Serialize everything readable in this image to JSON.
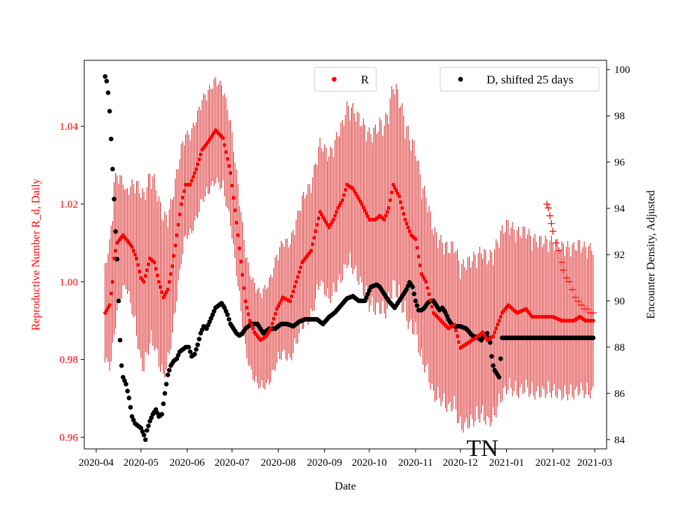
{
  "chart_data": {
    "type": "scatter",
    "title": "",
    "annotation": "TN",
    "xlabel": "Date",
    "ylabel_left": "Reproductive Number R_d, Daily",
    "ylabel_right": "Encounter Density, Adjusted",
    "x_ticks": [
      "2020-04",
      "2020-05",
      "2020-06",
      "2020-07",
      "2020-08",
      "2020-09",
      "2020-10",
      "2020-11",
      "2020-12",
      "2021-01",
      "2021-02",
      "2021-03"
    ],
    "x_tick_days": [
      0,
      30,
      61,
      91,
      122,
      153,
      183,
      214,
      244,
      275,
      306,
      334
    ],
    "x_range_days": [
      -8,
      342
    ],
    "ylim_left": [
      0.957,
      1.057
    ],
    "yticks_left": [
      0.96,
      0.98,
      1.0,
      1.02,
      1.04
    ],
    "ytick_labels_left": [
      "0.96",
      "0.98",
      "1.00",
      "1.02",
      "1.04"
    ],
    "ylim_right": [
      83.6,
      100.4
    ],
    "yticks_right": [
      84,
      86,
      88,
      90,
      92,
      94,
      96,
      98,
      100
    ],
    "ytick_labels_right": [
      "84",
      "86",
      "88",
      "90",
      "92",
      "94",
      "96",
      "98",
      "100"
    ],
    "legend": [
      {
        "label": "R",
        "color": "#ff0000",
        "position": "top-center"
      },
      {
        "label": "D, shifted 25 days",
        "color": "#000000",
        "position": "top-right"
      }
    ],
    "series": [
      {
        "name": "R",
        "axis": "left",
        "color": "#ff0000",
        "x_start_day": 6,
        "x_end_day": 333,
        "key_x_days": [
          6,
          9,
          11,
          12,
          13,
          14,
          16,
          18,
          20,
          24,
          27,
          30,
          32,
          34,
          36,
          39,
          42,
          45,
          48,
          51,
          54,
          57,
          60,
          63,
          67,
          71,
          75,
          80,
          85,
          90,
          95,
          100,
          103,
          106,
          110,
          114,
          117,
          121,
          125,
          130,
          134,
          138,
          144,
          150,
          156,
          159,
          162,
          165,
          168,
          172,
          178,
          183,
          187,
          190,
          193,
          196,
          199,
          203,
          207,
          211,
          214,
          218,
          221,
          226,
          231,
          236,
          240,
          244,
          248,
          252,
          256,
          259,
          262,
          266,
          272,
          276,
          282,
          288,
          292,
          297,
          302,
          306,
          312,
          316,
          320,
          324,
          328,
          333
        ],
        "key_values": [
          0.992,
          0.994,
          1.0,
          1.006,
          1.008,
          1.01,
          1.011,
          1.012,
          1.011,
          1.009,
          1.006,
          1.001,
          1.0,
          1.003,
          1.006,
          1.005,
          1.0,
          0.996,
          0.998,
          1.004,
          1.012,
          1.02,
          1.025,
          1.025,
          1.029,
          1.034,
          1.036,
          1.039,
          1.037,
          1.028,
          1.012,
          0.995,
          0.99,
          0.987,
          0.985,
          0.986,
          0.988,
          0.993,
          0.996,
          0.995,
          1.0,
          1.005,
          1.008,
          1.018,
          1.014,
          1.016,
          1.019,
          1.021,
          1.025,
          1.024,
          1.02,
          1.016,
          1.016,
          1.017,
          1.016,
          1.019,
          1.025,
          1.022,
          1.016,
          1.012,
          1.011,
          1.002,
          1.0,
          0.992,
          0.99,
          0.988,
          0.989,
          0.983,
          0.984,
          0.985,
          0.986,
          0.987,
          0.985,
          0.986,
          0.992,
          0.994,
          0.992,
          0.993,
          0.991,
          0.991,
          0.991,
          0.991,
          0.99,
          0.99,
          0.99,
          0.991,
          0.99,
          0.99
        ],
        "error_halfwidth_key_x_days": [
          6,
          12,
          20,
          30,
          45,
          60,
          90,
          110,
          140,
          180,
          200,
          230,
          270,
          300,
          333
        ],
        "error_halfwidth_key_values": [
          0.013,
          0.021,
          0.013,
          0.024,
          0.022,
          0.014,
          0.014,
          0.013,
          0.018,
          0.023,
          0.028,
          0.022,
          0.023,
          0.021,
          0.02
        ],
        "plus_marker_points": [
          [
            302,
            1.02
          ],
          [
            303,
            1.019
          ],
          [
            304,
            1.017
          ],
          [
            305,
            1.015
          ],
          [
            306,
            1.013
          ],
          [
            308,
            1.01
          ],
          [
            310,
            1.008
          ],
          [
            312,
            1.005
          ],
          [
            313,
            1.003
          ],
          [
            315,
            1.001
          ],
          [
            317,
            1.0
          ],
          [
            319,
            0.998
          ],
          [
            321,
            0.996
          ],
          [
            323,
            0.995
          ],
          [
            325,
            0.994
          ],
          [
            327,
            0.993
          ],
          [
            329,
            0.993
          ],
          [
            331,
            0.992
          ],
          [
            333,
            0.992
          ]
        ]
      },
      {
        "name": "D, shifted 25 days",
        "axis": "right",
        "color": "#000000",
        "x_start_day": 6,
        "x_end_day": 333,
        "key_x_days": [
          6,
          7,
          8,
          9,
          10,
          11,
          12,
          13,
          14,
          15,
          16,
          17,
          18,
          20,
          22,
          24,
          26,
          28,
          30,
          32,
          33,
          34,
          36,
          38,
          40,
          42,
          44,
          46,
          48,
          50,
          52,
          54,
          56,
          58,
          60,
          62,
          64,
          66,
          68,
          70,
          72,
          74,
          76,
          78,
          80,
          82,
          84,
          86,
          88,
          90,
          92,
          94,
          96,
          98,
          100,
          104,
          108,
          112,
          116,
          120,
          124,
          128,
          132,
          136,
          140,
          144,
          148,
          152,
          156,
          160,
          164,
          168,
          172,
          176,
          180,
          184,
          188,
          190,
          192,
          196,
          200,
          204,
          208,
          210,
          212,
          214,
          216,
          218,
          220,
          222,
          224,
          226,
          228,
          230,
          232,
          234,
          236,
          238,
          240,
          244,
          248,
          252,
          256,
          258,
          260,
          262,
          264,
          265,
          266,
          267,
          268,
          269,
          270,
          271,
          272,
          273,
          274,
          280,
          290,
          300,
          310,
          320,
          333
        ],
        "key_values": [
          99.7,
          99.5,
          99.0,
          98.2,
          97.0,
          95.7,
          94.4,
          93.0,
          91.8,
          90.0,
          88.3,
          87.2,
          86.7,
          86.4,
          85.8,
          85.0,
          84.7,
          84.6,
          84.5,
          84.2,
          84.0,
          84.4,
          84.8,
          85.1,
          85.3,
          85.0,
          85.1,
          86.0,
          86.8,
          87.2,
          87.4,
          87.5,
          87.8,
          87.9,
          88.0,
          88.0,
          87.6,
          87.7,
          88.1,
          88.6,
          88.9,
          88.8,
          89.1,
          89.4,
          89.7,
          89.8,
          89.9,
          89.7,
          89.4,
          89.0,
          88.8,
          88.6,
          88.5,
          88.6,
          88.8,
          89.0,
          89.0,
          88.6,
          88.8,
          88.8,
          89.0,
          89.0,
          88.9,
          89.1,
          89.2,
          89.2,
          89.2,
          89.0,
          89.3,
          89.5,
          89.8,
          90.1,
          90.2,
          90.0,
          90.0,
          90.6,
          90.7,
          90.6,
          90.4,
          90.0,
          89.7,
          90.1,
          90.5,
          90.8,
          90.6,
          90.0,
          89.6,
          89.6,
          89.7,
          89.9,
          90.0,
          90.0,
          89.8,
          89.6,
          89.7,
          89.5,
          89.2,
          89.0,
          88.9,
          88.9,
          88.8,
          88.5,
          88.4,
          88.3,
          88.5,
          88.6,
          88.2,
          87.6,
          87.2,
          87.0,
          86.9,
          86.8,
          86.7,
          87.5,
          88.4,
          88.4,
          88.4,
          88.4,
          88.4,
          88.4,
          88.4,
          88.4,
          88.4
        ]
      }
    ]
  }
}
